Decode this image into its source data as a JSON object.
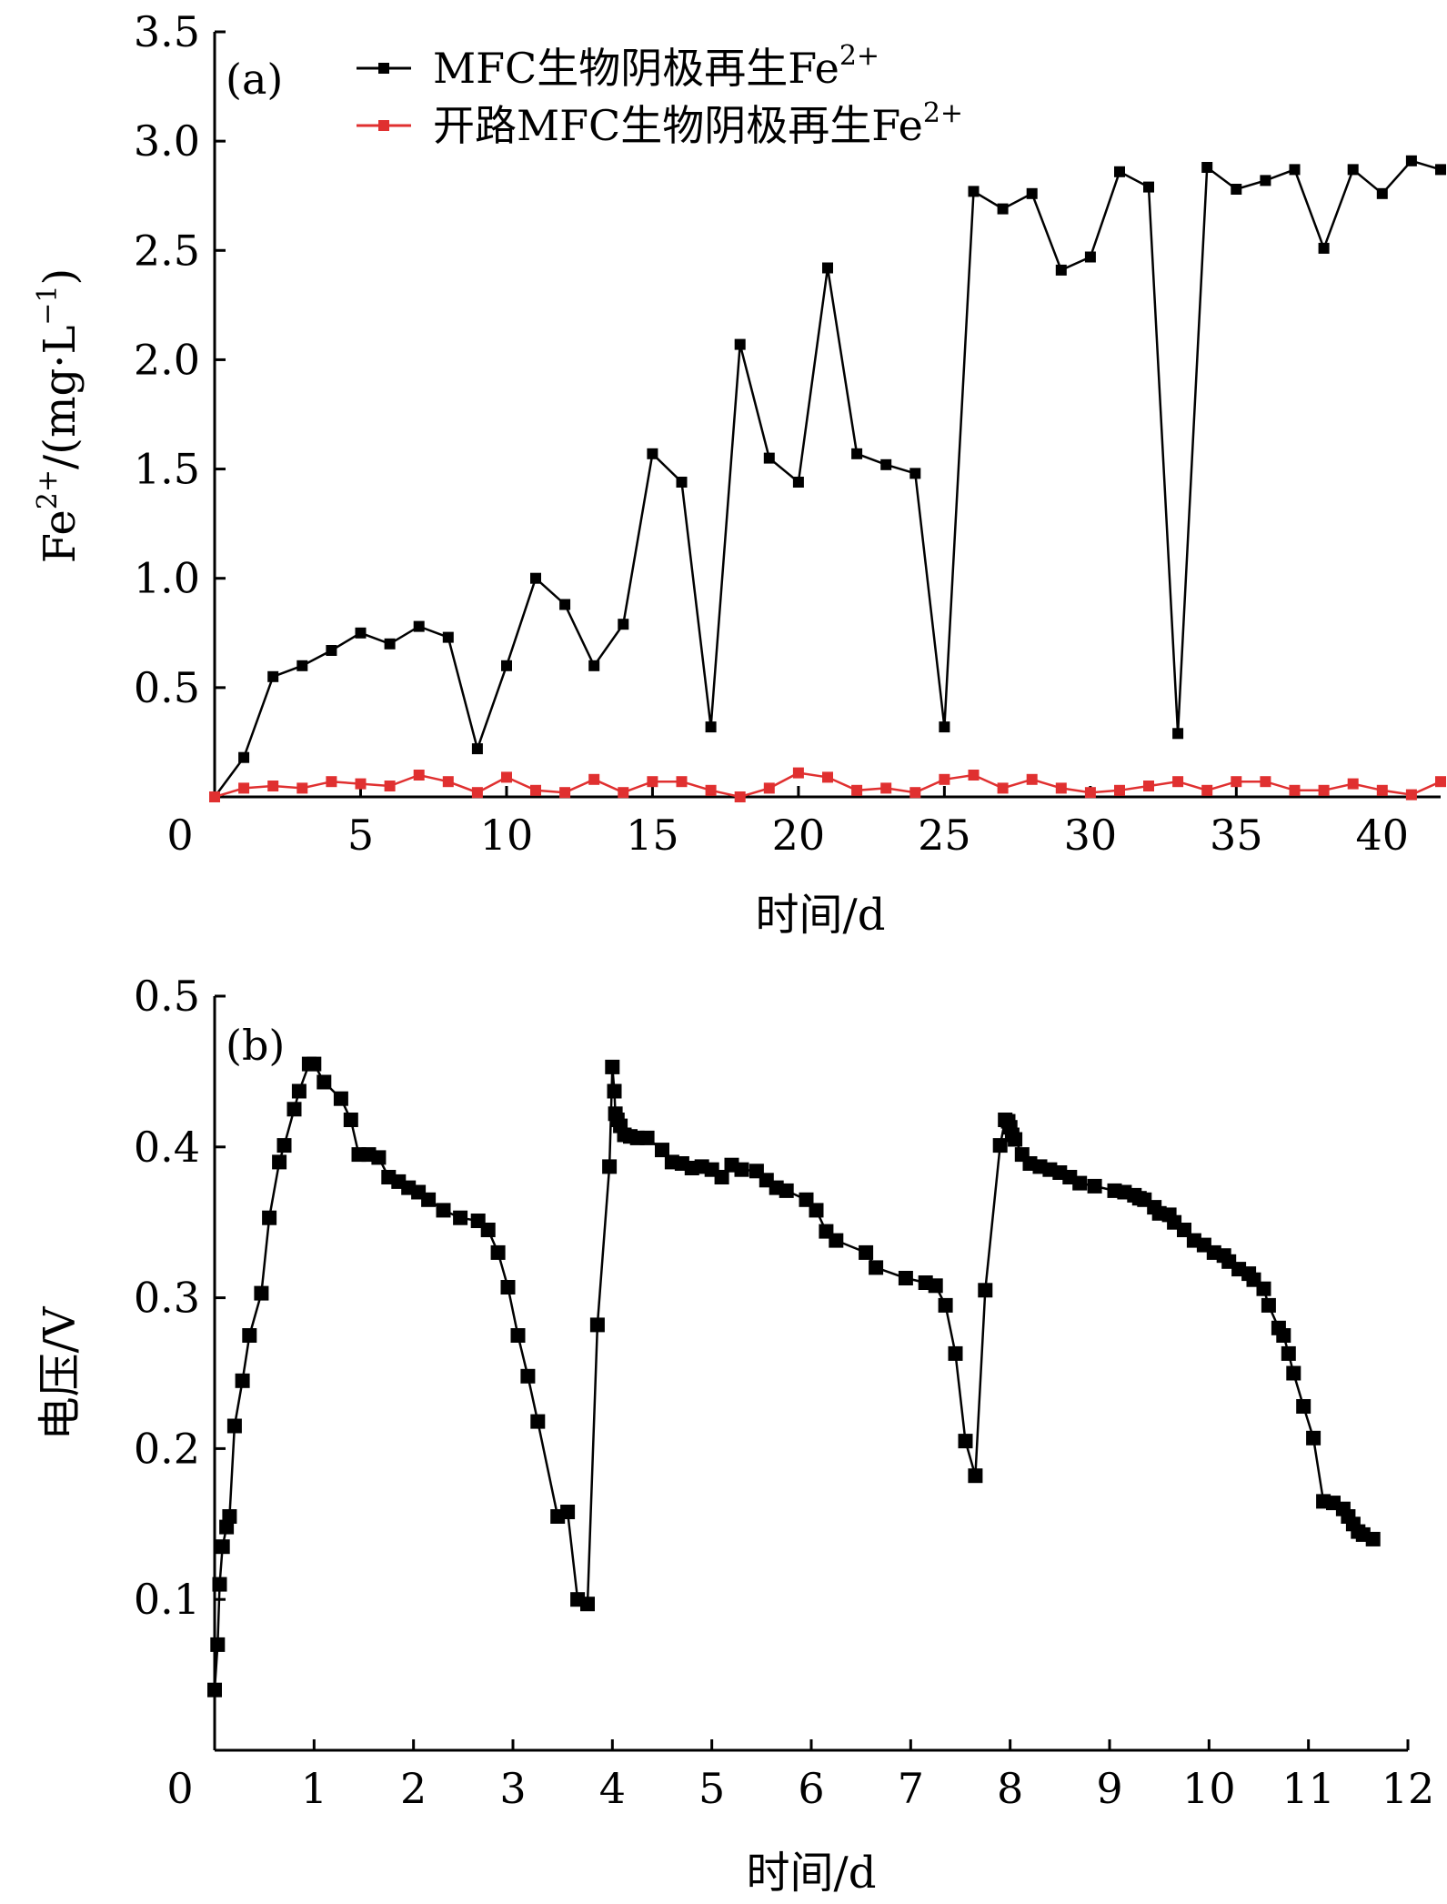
{
  "chart_data": [
    {
      "type": "line",
      "panel_label": "(a)",
      "xlabel": "时间/d",
      "ylabel_main": "Fe",
      "ylabel_sup": "2+",
      "ylabel_rest": "/(mg·L",
      "ylabel_sup2": "−1",
      "ylabel_end": ")",
      "xlim": [
        0,
        42
      ],
      "ylim": [
        0,
        3.5
      ],
      "x_ticks": [
        0,
        5,
        10,
        15,
        20,
        25,
        30,
        35,
        40
      ],
      "x_tick_labels": [
        "0",
        "5",
        "10",
        "15",
        "20",
        "25",
        "30",
        "35",
        "40"
      ],
      "y_ticks": [
        0.5,
        1.0,
        1.5,
        2.0,
        2.5,
        3.0,
        3.5
      ],
      "y_tick_labels": [
        "0.5",
        "1.0",
        "1.5",
        "2.0",
        "2.5",
        "3.0",
        "3.5"
      ],
      "legend_position": "top",
      "grid": false,
      "series": [
        {
          "name": "MFC生物阴极再生Fe",
          "name_sup": "2+",
          "color": "#000000",
          "x": [
            0,
            1,
            2,
            3,
            4,
            5,
            6,
            7,
            8,
            9,
            10,
            11,
            12,
            13,
            14,
            15,
            16,
            17,
            18,
            19,
            20,
            21,
            22,
            23,
            24,
            25,
            26,
            27,
            28,
            29,
            30,
            31,
            32,
            33,
            34,
            35,
            36,
            37,
            38,
            39,
            40,
            41,
            42
          ],
          "y": [
            0.0,
            0.18,
            0.55,
            0.6,
            0.67,
            0.75,
            0.7,
            0.78,
            0.73,
            0.22,
            0.6,
            1.0,
            0.88,
            0.6,
            0.79,
            1.57,
            1.44,
            0.32,
            2.07,
            1.55,
            1.44,
            2.42,
            1.57,
            1.52,
            1.48,
            0.32,
            2.77,
            2.69,
            2.76,
            2.41,
            2.47,
            2.86,
            2.79,
            0.29,
            2.88,
            2.78,
            2.82,
            2.87,
            2.51,
            2.87,
            2.76,
            2.91,
            2.87
          ]
        },
        {
          "name": "开路MFC生物阴极再生Fe",
          "name_sup": "2+",
          "color": "#e03030",
          "x": [
            0,
            1,
            2,
            3,
            4,
            5,
            6,
            7,
            8,
            9,
            10,
            11,
            12,
            13,
            14,
            15,
            16,
            17,
            18,
            19,
            20,
            21,
            22,
            23,
            24,
            25,
            26,
            27,
            28,
            29,
            30,
            31,
            32,
            33,
            34,
            35,
            36,
            37,
            38,
            39,
            40,
            41,
            42
          ],
          "y": [
            0.0,
            0.04,
            0.05,
            0.04,
            0.07,
            0.06,
            0.05,
            0.1,
            0.07,
            0.02,
            0.09,
            0.03,
            0.02,
            0.08,
            0.02,
            0.07,
            0.07,
            0.03,
            0.0,
            0.04,
            0.11,
            0.09,
            0.03,
            0.04,
            0.02,
            0.08,
            0.1,
            0.04,
            0.08,
            0.04,
            0.02,
            0.03,
            0.05,
            0.07,
            0.03,
            0.07,
            0.07,
            0.03,
            0.03,
            0.06,
            0.03,
            0.01,
            0.07
          ]
        }
      ]
    },
    {
      "type": "line",
      "panel_label": "(b)",
      "xlabel": "时间/d",
      "ylabel": "电压/V",
      "xlim": [
        0,
        12
      ],
      "ylim": [
        0,
        0.5
      ],
      "x_ticks": [
        0,
        1,
        2,
        3,
        4,
        5,
        6,
        7,
        8,
        9,
        10,
        11,
        12
      ],
      "x_tick_labels": [
        "0",
        "1",
        "2",
        "3",
        "4",
        "5",
        "6",
        "7",
        "8",
        "9",
        "10",
        "11",
        "12"
      ],
      "y_ticks": [
        0.1,
        0.2,
        0.3,
        0.4,
        0.5
      ],
      "y_tick_labels": [
        "0.1",
        "0.2",
        "0.3",
        "0.4",
        "0.5"
      ],
      "grid": false,
      "series": [
        {
          "color": "#000000",
          "x": [
            0.0,
            0.03,
            0.05,
            0.08,
            0.12,
            0.15,
            0.2,
            0.28,
            0.35,
            0.47,
            0.55,
            0.65,
            0.7,
            0.8,
            0.85,
            0.95,
            1.0,
            1.1,
            1.27,
            1.37,
            1.45,
            1.55,
            1.65,
            1.75,
            1.85,
            1.95,
            2.05,
            2.15,
            2.3,
            2.47,
            2.65,
            2.75,
            2.85,
            2.95,
            3.05,
            3.15,
            3.25,
            3.45,
            3.55,
            3.65,
            3.75,
            3.85,
            3.97,
            4.0,
            4.02,
            4.03,
            4.05,
            4.08,
            4.12,
            4.18,
            4.25,
            4.35,
            4.5,
            4.6,
            4.7,
            4.8,
            4.9,
            5.0,
            5.1,
            5.2,
            5.3,
            5.45,
            5.55,
            5.65,
            5.75,
            5.95,
            6.05,
            6.15,
            6.25,
            6.55,
            6.65,
            6.95,
            7.15,
            7.25,
            7.35,
            7.45,
            7.55,
            7.65,
            7.75,
            7.9,
            7.95,
            7.98,
            8.0,
            8.02,
            8.05,
            8.12,
            8.2,
            8.3,
            8.4,
            8.5,
            8.6,
            8.7,
            8.85,
            9.05,
            9.15,
            9.25,
            9.3,
            9.35,
            9.45,
            9.5,
            9.6,
            9.65,
            9.75,
            9.85,
            9.95,
            10.05,
            10.15,
            10.2,
            10.3,
            10.4,
            10.45,
            10.55,
            10.6,
            10.7,
            10.75,
            10.8,
            10.85,
            10.95,
            11.05,
            11.15,
            11.25,
            11.35,
            11.4,
            11.45,
            11.5,
            11.55,
            11.65
          ],
          "y": [
            0.04,
            0.07,
            0.11,
            0.135,
            0.148,
            0.155,
            0.215,
            0.245,
            0.275,
            0.303,
            0.353,
            0.39,
            0.401,
            0.425,
            0.437,
            0.455,
            0.455,
            0.443,
            0.432,
            0.418,
            0.395,
            0.395,
            0.393,
            0.38,
            0.377,
            0.373,
            0.37,
            0.365,
            0.358,
            0.353,
            0.351,
            0.345,
            0.33,
            0.307,
            0.275,
            0.248,
            0.218,
            0.155,
            0.158,
            0.1,
            0.097,
            0.282,
            0.387,
            0.453,
            0.437,
            0.422,
            0.418,
            0.414,
            0.408,
            0.407,
            0.406,
            0.406,
            0.398,
            0.39,
            0.389,
            0.386,
            0.387,
            0.385,
            0.38,
            0.388,
            0.385,
            0.384,
            0.378,
            0.373,
            0.371,
            0.365,
            0.358,
            0.344,
            0.338,
            0.33,
            0.32,
            0.313,
            0.31,
            0.308,
            0.295,
            0.263,
            0.205,
            0.182,
            0.305,
            0.401,
            0.418,
            0.417,
            0.413,
            0.408,
            0.405,
            0.395,
            0.389,
            0.387,
            0.385,
            0.383,
            0.38,
            0.376,
            0.374,
            0.371,
            0.37,
            0.368,
            0.366,
            0.365,
            0.36,
            0.356,
            0.355,
            0.35,
            0.345,
            0.338,
            0.335,
            0.33,
            0.328,
            0.324,
            0.319,
            0.316,
            0.312,
            0.306,
            0.295,
            0.28,
            0.275,
            0.263,
            0.25,
            0.228,
            0.207,
            0.165,
            0.164,
            0.16,
            0.155,
            0.15,
            0.145,
            0.143,
            0.14
          ]
        }
      ]
    }
  ]
}
